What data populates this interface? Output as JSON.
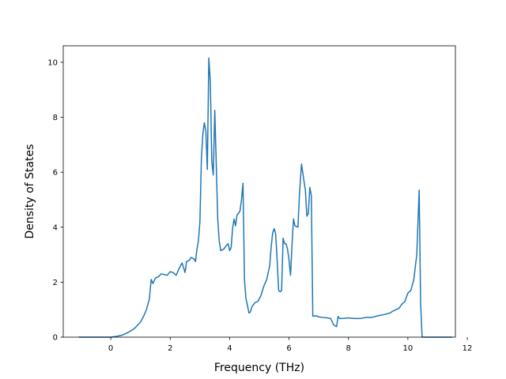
{
  "chart_data": {
    "type": "line",
    "xlabel": "Frequency (THz)",
    "ylabel": "Density of States",
    "xlim": [
      -1.6,
      11.6
    ],
    "ylim": [
      0,
      10.6
    ],
    "xticks": [
      0,
      2,
      4,
      6,
      8,
      10,
      12
    ],
    "yticks": [
      0,
      2,
      4,
      6,
      8,
      10
    ],
    "grid": false,
    "series": [
      {
        "color": "#1f77b4",
        "points": [
          [
            -1.08,
            0
          ],
          [
            0.0,
            0.0
          ],
          [
            0.2,
            0.03
          ],
          [
            0.4,
            0.08
          ],
          [
            0.6,
            0.18
          ],
          [
            0.8,
            0.32
          ],
          [
            1.0,
            0.55
          ],
          [
            1.1,
            0.75
          ],
          [
            1.2,
            1.0
          ],
          [
            1.3,
            1.4
          ],
          [
            1.36,
            2.1
          ],
          [
            1.42,
            1.95
          ],
          [
            1.5,
            2.15
          ],
          [
            1.6,
            2.2
          ],
          [
            1.7,
            2.3
          ],
          [
            1.8,
            2.28
          ],
          [
            1.9,
            2.25
          ],
          [
            2.0,
            2.38
          ],
          [
            2.1,
            2.35
          ],
          [
            2.2,
            2.25
          ],
          [
            2.3,
            2.5
          ],
          [
            2.4,
            2.7
          ],
          [
            2.5,
            2.35
          ],
          [
            2.55,
            2.75
          ],
          [
            2.65,
            2.8
          ],
          [
            2.7,
            2.9
          ],
          [
            2.8,
            2.85
          ],
          [
            2.85,
            2.75
          ],
          [
            2.9,
            3.2
          ],
          [
            2.95,
            3.5
          ],
          [
            3.0,
            4.2
          ],
          [
            3.05,
            6.5
          ],
          [
            3.1,
            7.4
          ],
          [
            3.15,
            7.8
          ],
          [
            3.2,
            7.5
          ],
          [
            3.25,
            6.1
          ],
          [
            3.3,
            10.15
          ],
          [
            3.35,
            9.3
          ],
          [
            3.4,
            6.4
          ],
          [
            3.45,
            5.9
          ],
          [
            3.5,
            8.25
          ],
          [
            3.55,
            6.3
          ],
          [
            3.6,
            4.3
          ],
          [
            3.65,
            3.5
          ],
          [
            3.7,
            3.15
          ],
          [
            3.8,
            3.2
          ],
          [
            3.9,
            3.35
          ],
          [
            3.95,
            3.4
          ],
          [
            4.0,
            3.15
          ],
          [
            4.05,
            3.25
          ],
          [
            4.1,
            3.95
          ],
          [
            4.15,
            4.3
          ],
          [
            4.2,
            4.05
          ],
          [
            4.25,
            4.45
          ],
          [
            4.3,
            4.5
          ],
          [
            4.35,
            4.6
          ],
          [
            4.4,
            5.0
          ],
          [
            4.45,
            5.6
          ],
          [
            4.5,
            2.1
          ],
          [
            4.55,
            1.4
          ],
          [
            4.6,
            1.15
          ],
          [
            4.65,
            0.88
          ],
          [
            4.7,
            0.92
          ],
          [
            4.75,
            1.1
          ],
          [
            4.85,
            1.25
          ],
          [
            4.95,
            1.3
          ],
          [
            5.05,
            1.5
          ],
          [
            5.15,
            1.85
          ],
          [
            5.25,
            2.1
          ],
          [
            5.35,
            2.6
          ],
          [
            5.4,
            3.3
          ],
          [
            5.45,
            3.8
          ],
          [
            5.5,
            3.95
          ],
          [
            5.55,
            3.75
          ],
          [
            5.6,
            2.8
          ],
          [
            5.65,
            1.7
          ],
          [
            5.7,
            1.65
          ],
          [
            5.75,
            1.7
          ],
          [
            5.8,
            3.6
          ],
          [
            5.85,
            3.4
          ],
          [
            5.9,
            3.4
          ],
          [
            5.95,
            3.2
          ],
          [
            6.0,
            2.8
          ],
          [
            6.05,
            2.25
          ],
          [
            6.1,
            3.35
          ],
          [
            6.15,
            4.3
          ],
          [
            6.2,
            4.05
          ],
          [
            6.3,
            4.0
          ],
          [
            6.35,
            5.2
          ],
          [
            6.42,
            6.3
          ],
          [
            6.5,
            5.7
          ],
          [
            6.55,
            5.35
          ],
          [
            6.6,
            4.4
          ],
          [
            6.65,
            4.5
          ],
          [
            6.7,
            5.45
          ],
          [
            6.75,
            5.15
          ],
          [
            6.8,
            0.76
          ],
          [
            6.9,
            0.78
          ],
          [
            7.0,
            0.74
          ],
          [
            7.1,
            0.72
          ],
          [
            7.3,
            0.7
          ],
          [
            7.4,
            0.68
          ],
          [
            7.5,
            0.45
          ],
          [
            7.6,
            0.38
          ],
          [
            7.65,
            0.75
          ],
          [
            7.7,
            0.68
          ],
          [
            7.8,
            0.68
          ],
          [
            8.0,
            0.7
          ],
          [
            8.2,
            0.68
          ],
          [
            8.4,
            0.68
          ],
          [
            8.6,
            0.72
          ],
          [
            8.8,
            0.72
          ],
          [
            9.0,
            0.78
          ],
          [
            9.2,
            0.82
          ],
          [
            9.4,
            0.88
          ],
          [
            9.5,
            0.95
          ],
          [
            9.6,
            1.0
          ],
          [
            9.7,
            1.05
          ],
          [
            9.8,
            1.2
          ],
          [
            9.9,
            1.3
          ],
          [
            10.0,
            1.6
          ],
          [
            10.1,
            1.7
          ],
          [
            10.2,
            2.1
          ],
          [
            10.3,
            3.0
          ],
          [
            10.38,
            5.35
          ],
          [
            10.43,
            1.2
          ],
          [
            10.48,
            0
          ],
          [
            11.5,
            0
          ]
        ]
      }
    ]
  }
}
